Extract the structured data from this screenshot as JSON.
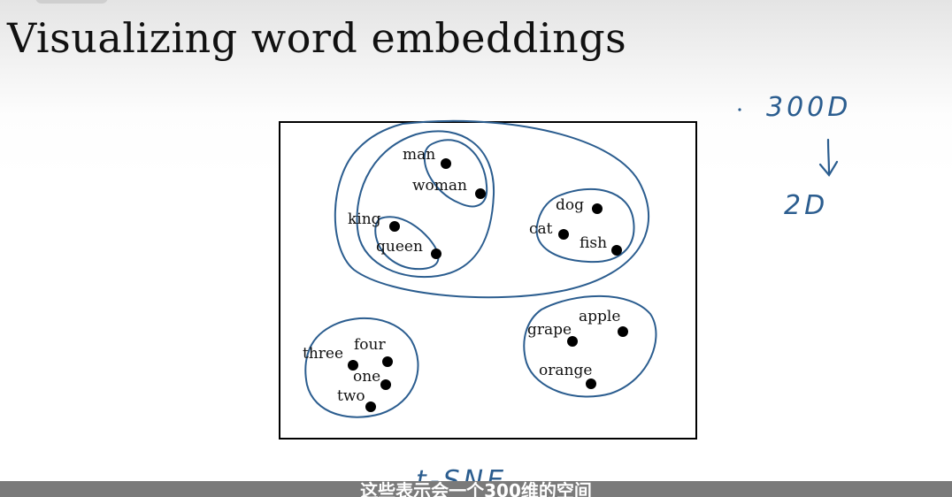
{
  "slide": {
    "title": "Visualizing word embeddings"
  },
  "diagram": {
    "words": [
      {
        "text": "man"
      },
      {
        "text": "woman"
      },
      {
        "text": "king"
      },
      {
        "text": "queen"
      },
      {
        "text": "dog"
      },
      {
        "text": "cat"
      },
      {
        "text": "fish"
      },
      {
        "text": "apple"
      },
      {
        "text": "grape"
      },
      {
        "text": "orange"
      },
      {
        "text": "three"
      },
      {
        "text": "four"
      },
      {
        "text": "one"
      },
      {
        "text": "two"
      }
    ]
  },
  "annotations": {
    "dim_from": "300D",
    "dim_to": "2D",
    "method": "t-SNE",
    "ink_color": "#2b5d8f"
  },
  "subtitle": {
    "text": "这些表示会一个300维的空间"
  }
}
